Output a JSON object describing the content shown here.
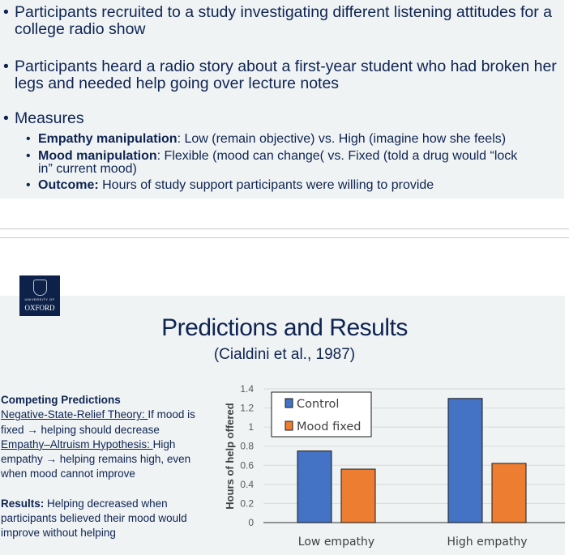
{
  "top_slide": {
    "bullets": [
      "Participants recruited to a study investigating different listening attitudes for a college radio show",
      "Participants heard a radio story about a first-year student who had broken her legs and needed help going over lecture notes",
      "Measures"
    ],
    "sub_bullets": [
      {
        "bold": "Empathy manipulation",
        "text": ": Low (remain objective) vs. High (imagine how she feels)"
      },
      {
        "bold": "Mood manipulation",
        "text": ": Flexible (mood can change( vs. Fixed (told a drug would “lock in” current mood)"
      },
      {
        "bold": "Outcome:",
        "text": " Hours of study support participants were willing to provide"
      }
    ]
  },
  "logo": {
    "line1": "UNIVERSITY OF",
    "line2": "OXFORD"
  },
  "slide": {
    "title": "Predictions and Results",
    "subtitle": "(Cialdini et al., 1987)",
    "competing_heading": "Competing Predictions",
    "nsr_label": "Negative-State-Relief Theory: ",
    "nsr_text": "If mood is fixed → helping should decrease",
    "ea_label": "Empathy–Altruism Hypothesis: ",
    "ea_text": "High empathy → helping remains high, even when mood cannot improve",
    "results_label": "Results:",
    "results_text": " Helping decreased when participants believed their mood would improve without helping"
  },
  "chart_data": {
    "type": "bar",
    "categories": [
      "Low empathy",
      "High empathy"
    ],
    "series": [
      {
        "name": "Control",
        "values": [
          0.75,
          1.3
        ],
        "color": "#4472c4"
      },
      {
        "name": "Mood fixed",
        "values": [
          0.56,
          0.62
        ],
        "color": "#ed7d31"
      }
    ],
    "ylabel": "Hours of help offered",
    "xlabel": "",
    "ylim": [
      0,
      1.4
    ],
    "yticks": [
      "0",
      "0.2",
      "0.4",
      "0.6",
      "0.8",
      "1",
      "1.2",
      "1.4"
    ],
    "grid": true,
    "legend": "top-left"
  }
}
